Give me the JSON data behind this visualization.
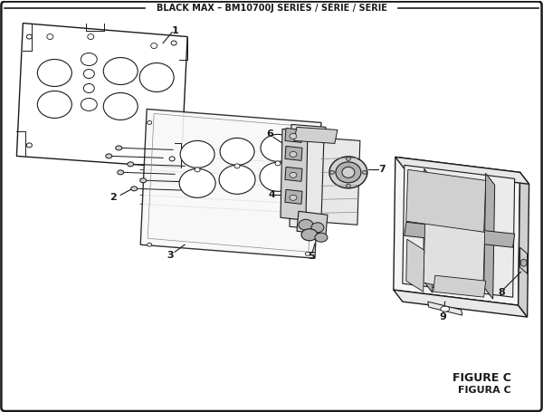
{
  "title": "BLACK MAX – BM10700J SERIES / SÉRIE / SERIE",
  "figure_label_1": "FIGURE C",
  "figure_label_2": "FIGURA C",
  "bg_color": "#ffffff",
  "lc": "#1a1a1a",
  "fig_width": 6.0,
  "fig_height": 4.55,
  "dpi": 100
}
